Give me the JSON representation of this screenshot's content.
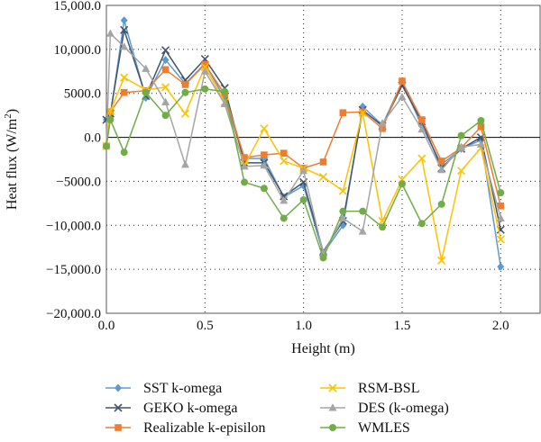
{
  "chart_data": {
    "type": "line",
    "xlabel": "Height (m)",
    "ylabel": "Heat flux (W/m²)",
    "ylabel_main": "Heat flux (W/m",
    "ylabel_sup": "2",
    "ylabel_end": ")",
    "xlim": [
      0,
      2.2
    ],
    "ylim": [
      -20000,
      15000
    ],
    "xticks": [
      0,
      0.5,
      1,
      1.5,
      2
    ],
    "xtick_labels": [
      "0.0",
      "0.5",
      "1.0",
      "1.5",
      "2.0"
    ],
    "yticks": [
      15000,
      10000,
      5000,
      0,
      -5000,
      -10000,
      -15000,
      -20000
    ],
    "ytick_labels": [
      "15,000.0",
      "10,000.0",
      "5000.0",
      "0.0",
      "−5000.0",
      "−10,000.0",
      "−15,000.0",
      "−20,000.0"
    ],
    "grid": "dotted",
    "legend_position": "bottom",
    "x": [
      0.0,
      0.02,
      0.09,
      0.2,
      0.3,
      0.4,
      0.5,
      0.6,
      0.7,
      0.8,
      0.9,
      1.0,
      1.1,
      1.2,
      1.3,
      1.4,
      1.5,
      1.6,
      1.7,
      1.8,
      1.9,
      2.0
    ],
    "series": [
      {
        "name": "SST k-omega",
        "color": "#5b9bd5",
        "marker": "diamond",
        "values": [
          2000,
          2500,
          13300,
          4500,
          8800,
          6100,
          8400,
          4400,
          -2400,
          -2400,
          -6800,
          -5500,
          -13200,
          -10000,
          3500,
          1400,
          6300,
          1300,
          -3100,
          -1300,
          -300,
          -14700
        ]
      },
      {
        "name": "GEKO k-omega",
        "color": "#44546a",
        "marker": "x",
        "values": [
          2000,
          2700,
          12200,
          4700,
          9900,
          6500,
          8900,
          5600,
          -2900,
          -2900,
          -6700,
          -5100,
          -13000,
          -9500,
          3100,
          1300,
          5900,
          1800,
          -3500,
          -1300,
          0,
          -10500
        ]
      },
      {
        "name": "Realizable k-episilon",
        "color": "#ed7d31",
        "marker": "square",
        "values": [
          -1000,
          2900,
          5100,
          5300,
          7700,
          6000,
          8300,
          4900,
          -2300,
          -2000,
          -1800,
          -3500,
          -2800,
          2800,
          2900,
          1000,
          6400,
          2000,
          -2700,
          -1200,
          1200,
          -7800
        ]
      },
      {
        "name": "RSM-BSL",
        "color": "#ffc000",
        "marker": "x",
        "values": [
          -1000,
          3000,
          6800,
          5400,
          5700,
          2700,
          8000,
          4000,
          -3200,
          1000,
          -2700,
          -3500,
          -4500,
          -6100,
          2800,
          -9500,
          -4800,
          -2400,
          -14000,
          -3800,
          -1200,
          -11600
        ]
      },
      {
        "name": "DES (k-omega)",
        "color": "#a5a5a5",
        "marker": "triangle",
        "values": [
          -800,
          11800,
          10300,
          7800,
          4000,
          -3100,
          7500,
          3800,
          -3300,
          -3200,
          -7200,
          -3800,
          -13200,
          -9200,
          -10700,
          1600,
          4600,
          900,
          -3700,
          -1100,
          -800,
          -9200
        ]
      },
      {
        "name": "WMLES",
        "color": "#70ad47",
        "marker": "circle",
        "values": [
          -1000,
          2000,
          -1700,
          5100,
          2500,
          5100,
          5500,
          5200,
          -5100,
          -5800,
          -9200,
          -7100,
          -13700,
          -8400,
          -8400,
          -10200,
          -5300,
          -9800,
          -7600,
          200,
          1900,
          -6300
        ]
      }
    ]
  }
}
